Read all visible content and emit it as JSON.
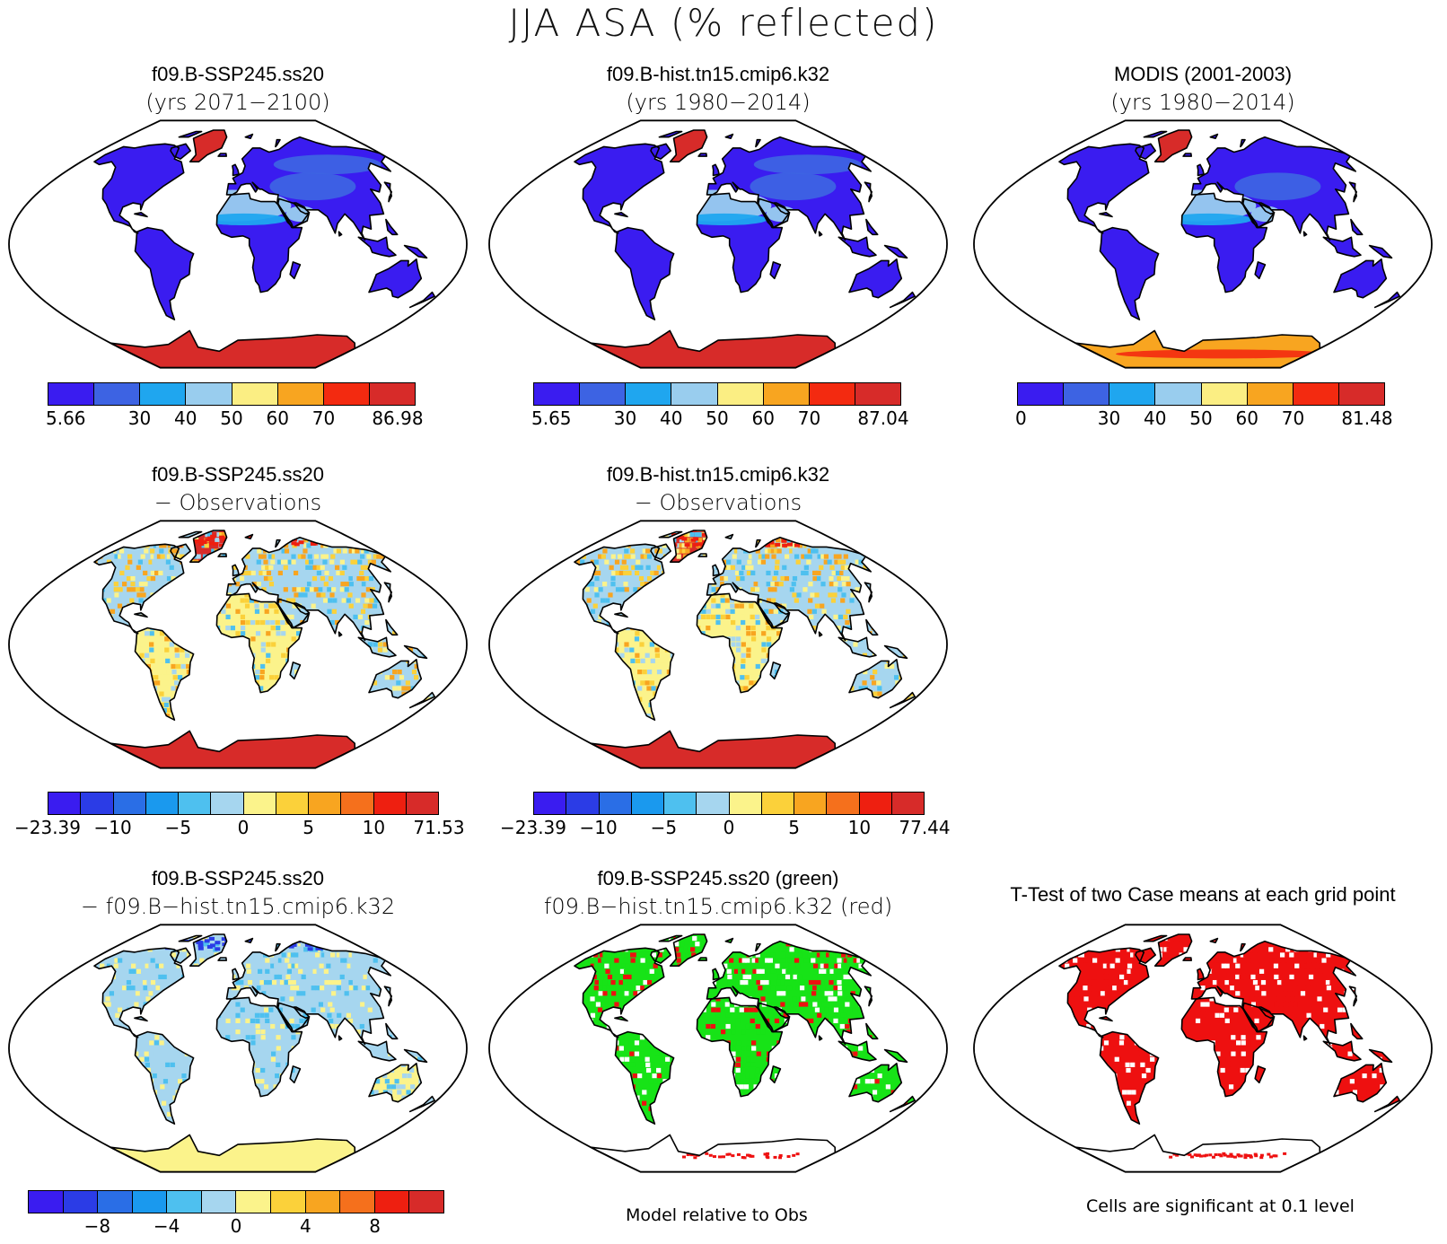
{
  "title": "JJA ASA (% reflected)",
  "colors": {
    "absolute": [
      "#3a1cf0",
      "#3d63e3",
      "#1fa6ef",
      "#99cdee",
      "#fbee83",
      "#f8a520",
      "#f32a10",
      "#d72b29"
    ],
    "difference": [
      "#3a1cf0",
      "#2b3ce6",
      "#2a6ee6",
      "#1a99ee",
      "#4ec0ef",
      "#a6d6ef",
      "#fbf38b",
      "#fbd13a",
      "#f8a520",
      "#f5701c",
      "#ee1f10",
      "#d72b29"
    ],
    "case_diff": [
      "#3a1cf0",
      "#2b3ce6",
      "#2a6ee6",
      "#1a99ee",
      "#4ec0ef",
      "#a6d6ef",
      "#fbf38b",
      "#fbd13a",
      "#f8a520",
      "#f5701c",
      "#ee1f10",
      "#d72b29"
    ],
    "land_default": "#3a1cf0",
    "coast": "#000000",
    "green": "#17e317",
    "red": "#ee1010"
  },
  "panels": [
    {
      "line1": "f09.B-SSP245.ss20",
      "line2": "(yrs 2071−2100)",
      "ticks": [
        "5.66",
        "30",
        "40",
        "50",
        "60",
        "70",
        "86.98"
      ]
    },
    {
      "line1": "f09.B-hist.tn15.cmip6.k32",
      "line2": "(yrs 1980−2014)",
      "ticks": [
        "5.65",
        "30",
        "40",
        "50",
        "60",
        "70",
        "87.04"
      ]
    },
    {
      "line1": "MODIS (2001-2003)",
      "line2": "(yrs 1980−2014)",
      "ticks": [
        "0",
        "30",
        "40",
        "50",
        "60",
        "70",
        "81.48"
      ]
    },
    {
      "line1": "f09.B-SSP245.ss20",
      "line2": "− Observations",
      "ticks": [
        "−23.39",
        "−10",
        "−5",
        "0",
        "5",
        "10",
        "71.53"
      ]
    },
    {
      "line1": "f09.B-hist.tn15.cmip6.k32",
      "line2": "− Observations",
      "ticks": [
        "−23.39",
        "−10",
        "−5",
        "0",
        "5",
        "10",
        "77.44"
      ]
    },
    {
      "line1": "f09.B-SSP245.ss20",
      "line2": "− f09.B−hist.tn15.cmip6.k32",
      "ticks": [
        "−8",
        "−4",
        "0",
        "4",
        "8"
      ]
    },
    {
      "line1": "f09.B-SSP245.ss20 (green)",
      "line2": "f09.B−hist.tn15.cmip6.k32 (red)",
      "footnote": "Model relative to Obs"
    },
    {
      "line1": "T-Test of two Case means at each grid point",
      "footnote": "Cells are significant at 0.1 level"
    }
  ]
}
